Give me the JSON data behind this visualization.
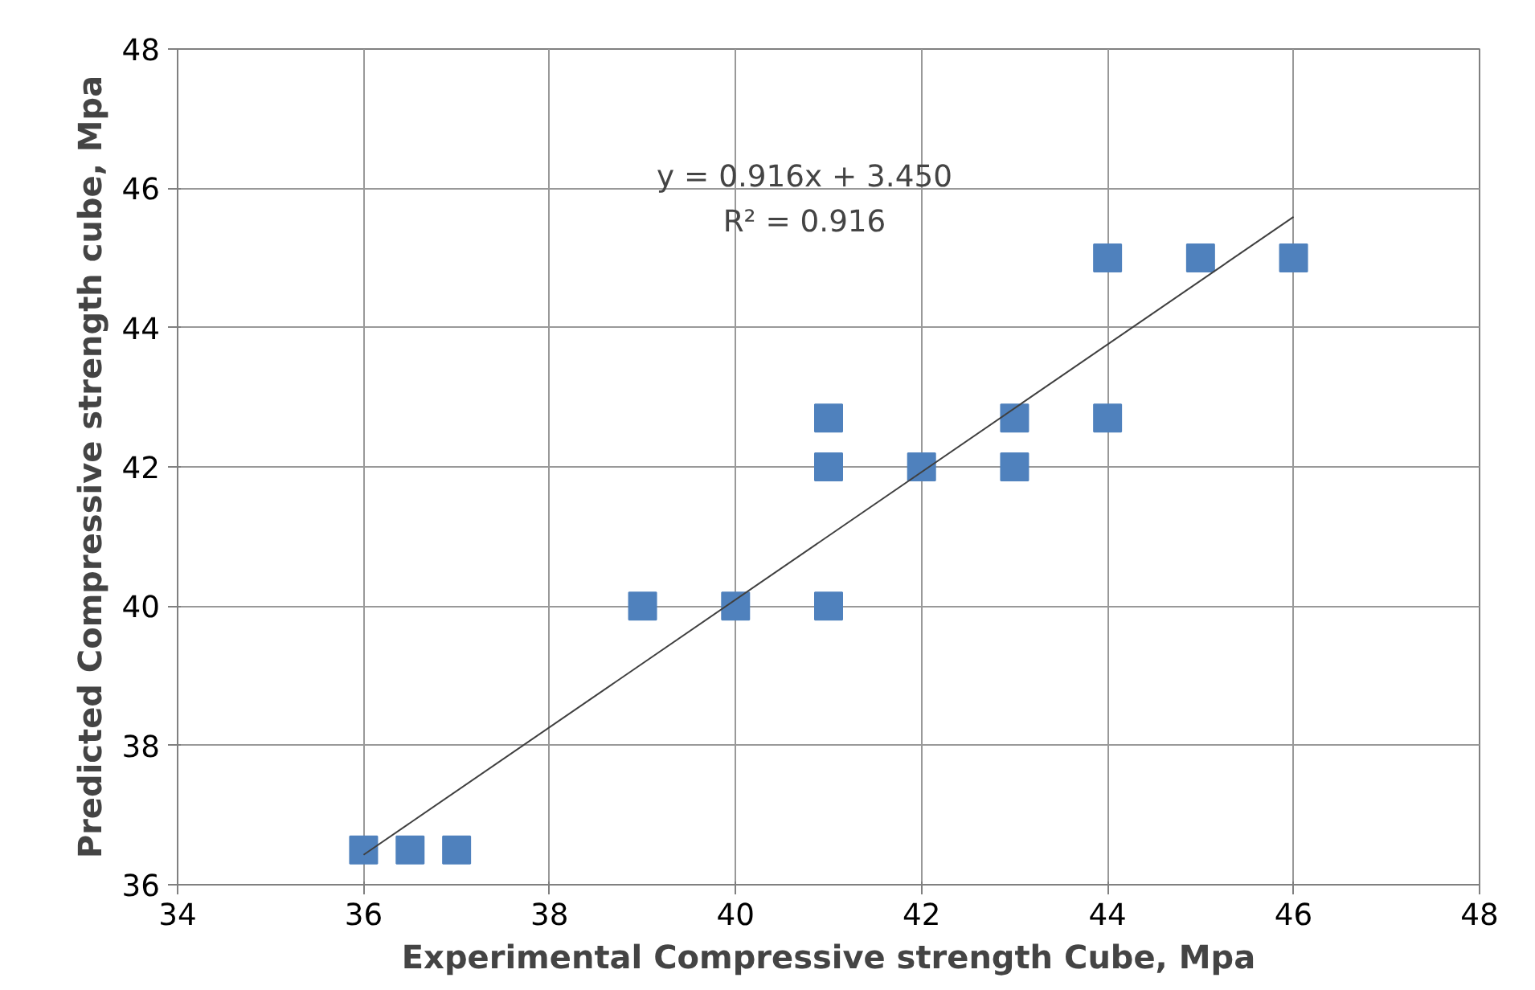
{
  "chart_data": {
    "type": "scatter",
    "xlabel": "Experimental Compressive strength Cube, Mpa",
    "ylabel": "Predicted Compressive strength cube, Mpa",
    "xlim": [
      34,
      48
    ],
    "ylim": [
      36,
      48
    ],
    "xticks": [
      34,
      36,
      38,
      40,
      42,
      44,
      46,
      48
    ],
    "yticks": [
      36,
      38,
      40,
      42,
      44,
      46,
      48
    ],
    "grid": true,
    "series": [
      {
        "marker": "square",
        "color": "#4f81bd",
        "x": [
          36,
          36.5,
          37,
          39,
          40,
          41,
          41,
          41,
          42,
          43,
          43,
          44,
          44,
          45,
          46
        ],
        "values": [
          36.5,
          36.5,
          36.5,
          40,
          40,
          40,
          42,
          42.7,
          42,
          42,
          42.7,
          42.7,
          45,
          45,
          45
        ]
      },
      {
        "type": "line",
        "marker": "none",
        "color": "#404040",
        "x": [
          36,
          46
        ],
        "values": [
          36.43,
          45.59
        ]
      }
    ],
    "annotations": [
      "y = 0.916x + 3.450",
      "R² = 0.916"
    ]
  }
}
